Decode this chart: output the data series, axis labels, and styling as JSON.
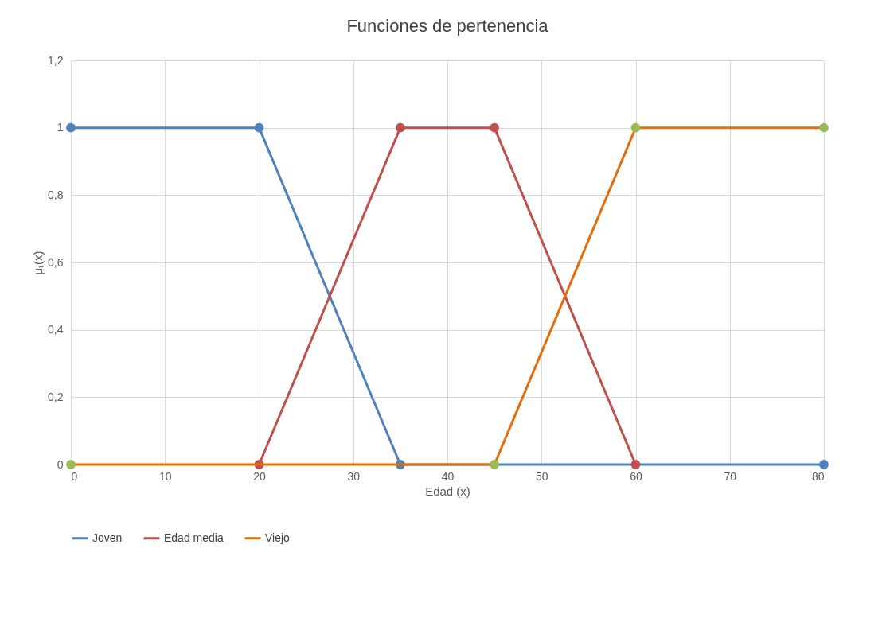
{
  "chart_data": {
    "type": "line",
    "title": "Funciones de pertenencia",
    "xlabel": "Edad (x)",
    "ylabel": "μₜ(x)",
    "series": [
      {
        "name": "Joven",
        "color": "#4f81bd",
        "x": [
          0,
          20,
          35,
          80
        ],
        "values": [
          1,
          1,
          0,
          0
        ]
      },
      {
        "name": "Edad media",
        "color": "#c0504d",
        "x": [
          20,
          35,
          45,
          60
        ],
        "values": [
          0,
          1,
          1,
          0
        ]
      },
      {
        "name": "Viejo",
        "color": "#e46c0a",
        "colors": [
          "#9bbb59",
          "#9bbb59",
          "#9bbb59",
          "#9bbb59"
        ],
        "x": [
          0,
          45,
          60,
          80
        ],
        "values": [
          0,
          0,
          1,
          1
        ]
      }
    ],
    "xlim": [
      0,
      80
    ],
    "xticks": [
      0,
      10,
      20,
      30,
      40,
      50,
      60,
      70,
      80
    ],
    "ylim": [
      0,
      1.2
    ],
    "yticks": [
      0,
      {
        "value": 0.2,
        "label": "0,2"
      },
      {
        "value": 0.4,
        "label": "0,4"
      },
      {
        "value": 0.6,
        "label": "0,6"
      },
      {
        "value": 0.8,
        "label": "0,8"
      },
      1,
      {
        "value": 1.2,
        "label": "1,2"
      }
    ],
    "grid": true,
    "legend": "bottom",
    "marker": "circle",
    "line_style": "solid"
  }
}
